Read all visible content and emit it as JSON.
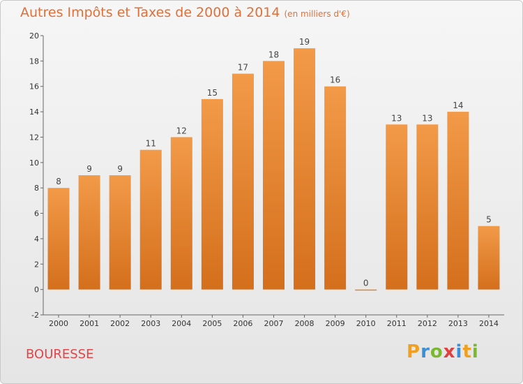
{
  "header": {
    "title": "Autres Impôts et Taxes de 2000 à 2014",
    "unit": "(en milliers d'€)"
  },
  "commune": "BOURESSE",
  "logo": {
    "letters": [
      "P",
      "r",
      "o",
      "x",
      "i",
      "t",
      "i"
    ],
    "colors": [
      "#f0a020",
      "#3a8fd8",
      "#7ab830",
      "#e04040",
      "#3a8fd8",
      "#f0a020",
      "#7ab830"
    ]
  },
  "chart_data": {
    "type": "bar",
    "title": "Autres Impôts et Taxes de 2000 à 2014",
    "xlabel": "",
    "ylabel": "",
    "categories": [
      "2000",
      "2001",
      "2002",
      "2003",
      "2004",
      "2005",
      "2006",
      "2007",
      "2008",
      "2009",
      "2010",
      "2011",
      "2012",
      "2013",
      "2014"
    ],
    "values": [
      8,
      9,
      9,
      11,
      12,
      15,
      17,
      18,
      19,
      16,
      0,
      13,
      13,
      14,
      5
    ],
    "ylim": [
      -2,
      20
    ],
    "yticks": [
      -2,
      0,
      2,
      4,
      6,
      8,
      10,
      12,
      14,
      16,
      18,
      20
    ],
    "grid": false,
    "bar_color": "#f29a48",
    "bar_color_dark": "#d46f1c"
  }
}
